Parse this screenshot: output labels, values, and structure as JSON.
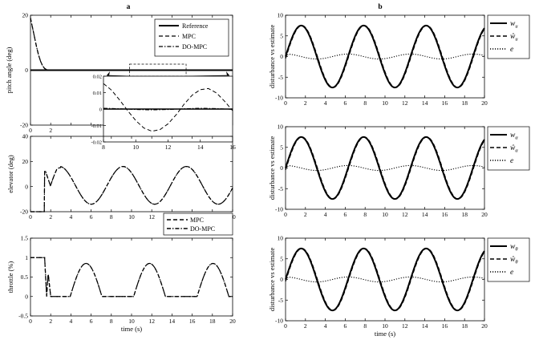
{
  "figure": {
    "panel_a_label": "a",
    "panel_b_label": "b",
    "time_label": "time (s)"
  },
  "chart_data": [
    {
      "id": "pitch",
      "type": "line",
      "ylabel": "pitch angle (deg)",
      "xlim": [
        0,
        20
      ],
      "ylim": [
        -20,
        20
      ],
      "xticks": [
        0,
        2,
        4,
        6,
        8,
        10,
        12,
        14,
        16,
        18,
        20
      ],
      "xticklabels": [
        "0",
        "2",
        "",
        "",
        "",
        "",
        "",
        "",
        "",
        "",
        ""
      ],
      "yticks": [
        -20,
        0,
        20
      ],
      "series": [
        {
          "name": "Reference",
          "style": "solid",
          "x": [
            0,
            20
          ],
          "y": [
            0,
            0
          ]
        },
        {
          "name": "MPC",
          "style": "dashed",
          "x": [
            0,
            0.2,
            0.4,
            0.6,
            0.8,
            1.0,
            1.2,
            1.4,
            1.6,
            1.8,
            2.0,
            20
          ],
          "y": [
            19,
            15.5,
            12,
            8.5,
            5.5,
            3.2,
            1.6,
            0.6,
            0.2,
            0.05,
            0,
            0
          ]
        },
        {
          "name": "DO-MPC",
          "style": "dashdot",
          "x": [
            0,
            0.2,
            0.4,
            0.6,
            0.8,
            1.0,
            1.2,
            1.4,
            1.6,
            1.8,
            2.0,
            20
          ],
          "y": [
            19,
            15.5,
            12,
            8.5,
            5.5,
            3.2,
            1.6,
            0.6,
            0.2,
            0.05,
            0,
            0
          ]
        }
      ],
      "legend_position": "top-right",
      "inset": {
        "xlim": [
          8,
          16
        ],
        "ylim": [
          -0.02,
          0.02
        ],
        "xticks": [
          8,
          10,
          12,
          14,
          16
        ],
        "yticks": [
          -0.02,
          -0.01,
          0,
          0.01,
          0.02
        ],
        "yticklabels": [
          "-0.02",
          "-0.01",
          "0",
          "0.01",
          "0.02"
        ],
        "mpc_x": [
          8,
          8.5,
          9,
          9.5,
          10,
          10.5,
          11,
          11.5,
          12,
          12.5,
          13,
          13.5,
          14,
          14.5,
          15,
          15.5,
          16
        ],
        "mpc_y": [
          0.0155,
          0.0115,
          0.0055,
          -0.001,
          -0.007,
          -0.0115,
          -0.0135,
          -0.0125,
          -0.009,
          -0.0035,
          0.003,
          0.0085,
          0.0118,
          0.0125,
          0.0098,
          0.0048,
          -0.001
        ],
        "do_x": [
          8,
          9,
          10,
          11,
          12,
          13,
          14,
          15,
          16
        ],
        "do_y": [
          0.0005,
          0.0002,
          -0.0003,
          -0.0005,
          -0.0003,
          0.0002,
          0.0005,
          0.0003,
          -0.0002
        ]
      }
    },
    {
      "id": "elevator",
      "type": "line",
      "ylabel": "elevator (deg)",
      "xlim": [
        0,
        20
      ],
      "ylim": [
        -20,
        40
      ],
      "xticks": [
        0,
        2,
        4,
        6,
        8,
        10,
        12,
        14,
        16,
        18,
        20
      ],
      "yticks": [
        -20,
        0,
        20,
        40
      ],
      "series": [
        {
          "name": "MPC",
          "style": "dashed"
        },
        {
          "name": "DO-MPC",
          "style": "dashdot"
        }
      ],
      "legend_position": "bottom-right",
      "signal": "elevator step then sine, amplitude 15, mean 1"
    },
    {
      "id": "throttle",
      "type": "line",
      "ylabel": "throttle (%)",
      "xlabel": "time (s)",
      "xlim": [
        0,
        20
      ],
      "ylim": [
        -0.5,
        1.5
      ],
      "xticks": [
        0,
        2,
        4,
        6,
        8,
        10,
        12,
        14,
        16,
        18,
        20
      ],
      "yticks": [
        -0.5,
        0,
        0.5,
        1,
        1.5
      ],
      "yticklabels": [
        "-0.5",
        "0",
        "0.5",
        "1",
        "1.5"
      ],
      "signal": "saturated sine, peaks 0.85 at t = 5.5, 11.8, 18.1"
    },
    {
      "id": "dist_u",
      "type": "line",
      "ylabel": "disturbance vs estimate",
      "xlim": [
        0,
        20
      ],
      "ylim": [
        -10,
        10
      ],
      "xticks": [
        0,
        2,
        4,
        6,
        8,
        10,
        12,
        14,
        16,
        18,
        20
      ],
      "yticks": [
        -10,
        -5,
        0,
        5,
        10
      ],
      "amplitude": 7.5,
      "period_s": 6.28,
      "series": [
        {
          "name": "w_u",
          "legend_base": "w",
          "legend_sub": "u",
          "legend_hat": false,
          "style": "solid"
        },
        {
          "name": "ŵ_u",
          "legend_base": "ŵ",
          "legend_sub": "u",
          "legend_hat": true,
          "style": "dashed"
        },
        {
          "name": "e",
          "legend_base": "e",
          "legend_sub": "",
          "legend_hat": false,
          "style": "dotted"
        }
      ]
    },
    {
      "id": "dist_alpha",
      "type": "line",
      "ylabel": "disturbance vs estimate",
      "xlim": [
        0,
        20
      ],
      "ylim": [
        -10,
        10
      ],
      "xticks": [
        0,
        2,
        4,
        6,
        8,
        10,
        12,
        14,
        16,
        18,
        20
      ],
      "yticks": [
        -10,
        -5,
        0,
        5,
        10
      ],
      "amplitude": 7.5,
      "period_s": 6.28,
      "series": [
        {
          "name": "w_α",
          "legend_base": "w",
          "legend_sub": "α",
          "legend_hat": false,
          "style": "solid"
        },
        {
          "name": "ŵ_α",
          "legend_base": "ŵ",
          "legend_sub": "α",
          "legend_hat": true,
          "style": "dashed"
        },
        {
          "name": "e",
          "legend_base": "e",
          "legend_sub": "",
          "legend_hat": false,
          "style": "dotted"
        }
      ]
    },
    {
      "id": "dist_theta",
      "type": "line",
      "ylabel": "disturbance vs estimate",
      "xlabel": "time (s)",
      "xlim": [
        0,
        20
      ],
      "ylim": [
        -10,
        10
      ],
      "xticks": [
        0,
        2,
        4,
        6,
        8,
        10,
        12,
        14,
        16,
        18,
        20
      ],
      "yticks": [
        -10,
        -5,
        0,
        5,
        10
      ],
      "amplitude": 7.5,
      "period_s": 6.28,
      "series": [
        {
          "name": "w_θ",
          "legend_base": "w",
          "legend_sub": "θ",
          "legend_hat": false,
          "style": "solid"
        },
        {
          "name": "ŵ_θ",
          "legend_base": "ŵ",
          "legend_sub": "θ",
          "legend_hat": true,
          "style": "dashed"
        },
        {
          "name": "e",
          "legend_base": "e",
          "legend_sub": "",
          "legend_hat": false,
          "style": "dotted"
        }
      ]
    }
  ]
}
